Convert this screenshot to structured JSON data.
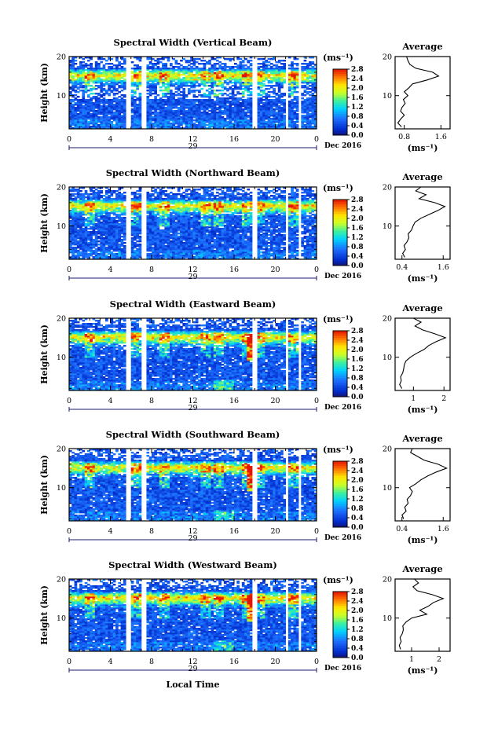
{
  "figure": {
    "x_axis_label": "Local Time",
    "date_label": "Dec 2016",
    "day_label": "29",
    "y_axis_label": "Height (km)",
    "colorbar_unit": "(ms⁻¹)",
    "colorbar_ticks": [
      "2.8",
      "2.4",
      "2.0",
      "1.6",
      "1.2",
      "0.8",
      "0.4",
      "0.0"
    ],
    "time_ticks": [
      "0",
      "4",
      "8",
      "12",
      "16",
      "20",
      "0"
    ],
    "height_ticks": [
      "20",
      "10"
    ],
    "average_title": "Average",
    "average_xlabel": "(ms⁻¹)"
  },
  "chart_data": [
    {
      "type": "heatmap",
      "title": "Spectral Width (Vertical Beam)",
      "xlabel": "",
      "ylabel": "Height (km)",
      "x_range_hours": [
        0,
        24
      ],
      "ylim_km": [
        1.5,
        20
      ],
      "colorbar_range": [
        0.0,
        2.8
      ],
      "data_gaps_hours": [
        [
          5.6,
          6.0
        ],
        [
          7.1,
          7.5
        ],
        [
          17.7,
          18.3
        ],
        [
          20.9,
          21.2
        ],
        [
          22.3,
          22.6
        ]
      ],
      "profile": {
        "type": "line",
        "title": "Average",
        "x_tick_labels": [
          "0.8",
          "1.6"
        ],
        "x_ticks": [
          0.8,
          1.6
        ],
        "xlim": [
          0.6,
          1.8
        ],
        "y_tick_labels": [
          "20",
          "10"
        ],
        "points": [
          [
            0.74,
            2
          ],
          [
            0.66,
            3
          ],
          [
            0.72,
            4
          ],
          [
            0.8,
            5
          ],
          [
            0.72,
            6
          ],
          [
            0.75,
            7
          ],
          [
            0.82,
            8
          ],
          [
            0.78,
            9
          ],
          [
            0.88,
            10
          ],
          [
            0.8,
            11
          ],
          [
            0.9,
            12
          ],
          [
            0.98,
            13
          ],
          [
            1.3,
            14
          ],
          [
            1.55,
            15
          ],
          [
            1.42,
            16
          ],
          [
            1.05,
            17
          ],
          [
            0.92,
            18
          ],
          [
            0.88,
            19
          ],
          [
            0.85,
            20
          ]
        ]
      }
    },
    {
      "type": "heatmap",
      "title": "Spectral Width (Northward Beam)",
      "xlabel": "",
      "ylabel": "Height (km)",
      "x_range_hours": [
        0,
        24
      ],
      "ylim_km": [
        1.5,
        20
      ],
      "colorbar_range": [
        0.0,
        2.8
      ],
      "data_gaps_hours": [
        [
          5.6,
          6.0
        ],
        [
          7.1,
          7.5
        ],
        [
          17.7,
          18.3
        ],
        [
          20.9,
          21.2
        ],
        [
          22.3,
          22.6
        ]
      ],
      "profile": {
        "type": "line",
        "title": "Average",
        "x_tick_labels": [
          "0.4",
          "1.6"
        ],
        "x_ticks": [
          0.4,
          1.6
        ],
        "xlim": [
          0.2,
          1.8
        ],
        "y_tick_labels": [
          "20",
          "10"
        ],
        "points": [
          [
            0.48,
            2
          ],
          [
            0.42,
            3
          ],
          [
            0.5,
            4
          ],
          [
            0.46,
            5
          ],
          [
            0.55,
            6
          ],
          [
            0.6,
            7
          ],
          [
            0.58,
            8
          ],
          [
            0.68,
            9
          ],
          [
            0.72,
            10
          ],
          [
            0.78,
            11
          ],
          [
            0.95,
            12
          ],
          [
            1.2,
            13
          ],
          [
            1.45,
            14
          ],
          [
            1.65,
            15
          ],
          [
            1.35,
            16
          ],
          [
            0.9,
            17
          ],
          [
            1.1,
            18
          ],
          [
            0.8,
            19
          ],
          [
            0.95,
            20
          ]
        ]
      }
    },
    {
      "type": "heatmap",
      "title": "Spectral Width (Eastward Beam)",
      "xlabel": "",
      "ylabel": "Height (km)",
      "x_range_hours": [
        0,
        24
      ],
      "ylim_km": [
        1.5,
        20
      ],
      "colorbar_range": [
        0.0,
        2.8
      ],
      "data_gaps_hours": [
        [
          5.6,
          6.0
        ],
        [
          7.1,
          7.5
        ],
        [
          17.7,
          18.3
        ],
        [
          20.9,
          21.2
        ],
        [
          22.3,
          22.6
        ]
      ],
      "profile": {
        "type": "line",
        "title": "Average",
        "x_tick_labels": [
          "1",
          "2"
        ],
        "x_ticks": [
          1,
          2
        ],
        "xlim": [
          0.4,
          2.2
        ],
        "y_tick_labels": [
          "20",
          "10"
        ],
        "points": [
          [
            0.62,
            2
          ],
          [
            0.55,
            3
          ],
          [
            0.6,
            4
          ],
          [
            0.58,
            5
          ],
          [
            0.65,
            6
          ],
          [
            0.68,
            7
          ],
          [
            0.7,
            8
          ],
          [
            0.75,
            9
          ],
          [
            0.9,
            10
          ],
          [
            1.1,
            11
          ],
          [
            1.35,
            12
          ],
          [
            1.5,
            13
          ],
          [
            1.75,
            14
          ],
          [
            2.05,
            15
          ],
          [
            1.7,
            16
          ],
          [
            1.3,
            17
          ],
          [
            1.05,
            18
          ],
          [
            1.25,
            19
          ],
          [
            1.0,
            20
          ]
        ]
      }
    },
    {
      "type": "heatmap",
      "title": "Spectral Width (Southward Beam)",
      "xlabel": "",
      "ylabel": "Height (km)",
      "x_range_hours": [
        0,
        24
      ],
      "ylim_km": [
        1.5,
        20
      ],
      "colorbar_range": [
        0.0,
        2.8
      ],
      "data_gaps_hours": [
        [
          5.6,
          6.0
        ],
        [
          7.1,
          7.5
        ],
        [
          17.7,
          18.3
        ],
        [
          20.9,
          21.2
        ],
        [
          22.3,
          22.6
        ]
      ],
      "profile": {
        "type": "line",
        "title": "Average",
        "x_tick_labels": [
          "0.4",
          "1.6"
        ],
        "x_ticks": [
          0.4,
          1.6
        ],
        "xlim": [
          0.2,
          1.8
        ],
        "y_tick_labels": [
          "20",
          "10"
        ],
        "points": [
          [
            0.45,
            2
          ],
          [
            0.4,
            3
          ],
          [
            0.52,
            4
          ],
          [
            0.48,
            5
          ],
          [
            0.58,
            6
          ],
          [
            0.55,
            7
          ],
          [
            0.65,
            8
          ],
          [
            0.7,
            9
          ],
          [
            0.62,
            10
          ],
          [
            0.8,
            11
          ],
          [
            0.95,
            12
          ],
          [
            1.15,
            13
          ],
          [
            1.4,
            14
          ],
          [
            1.7,
            15
          ],
          [
            1.45,
            16
          ],
          [
            1.05,
            17
          ],
          [
            0.85,
            18
          ],
          [
            0.65,
            19
          ],
          [
            0.7,
            20
          ]
        ]
      }
    },
    {
      "type": "heatmap",
      "title": "Spectral Width (Westward Beam)",
      "xlabel": "Local Time",
      "ylabel": "Height (km)",
      "x_range_hours": [
        0,
        24
      ],
      "ylim_km": [
        1.5,
        20
      ],
      "colorbar_range": [
        0.0,
        2.8
      ],
      "data_gaps_hours": [
        [
          5.6,
          6.0
        ],
        [
          7.1,
          7.5
        ],
        [
          17.7,
          18.3
        ],
        [
          20.9,
          21.2
        ],
        [
          22.3,
          22.6
        ]
      ],
      "profile": {
        "type": "line",
        "title": "Average",
        "x_tick_labels": [
          "1",
          "2"
        ],
        "x_ticks": [
          1,
          2
        ],
        "xlim": [
          0.4,
          2.4
        ],
        "y_tick_labels": [
          "20",
          "10"
        ],
        "points": [
          [
            0.6,
            2
          ],
          [
            0.55,
            3
          ],
          [
            0.62,
            4
          ],
          [
            0.58,
            5
          ],
          [
            0.66,
            6
          ],
          [
            0.7,
            7
          ],
          [
            0.68,
            8
          ],
          [
            0.8,
            9
          ],
          [
            1.0,
            10
          ],
          [
            1.55,
            11
          ],
          [
            1.3,
            12
          ],
          [
            1.6,
            13
          ],
          [
            1.8,
            14
          ],
          [
            2.15,
            15
          ],
          [
            1.75,
            16
          ],
          [
            1.2,
            17
          ],
          [
            1.05,
            18
          ],
          [
            1.25,
            19
          ],
          [
            1.1,
            20
          ]
        ]
      }
    }
  ]
}
